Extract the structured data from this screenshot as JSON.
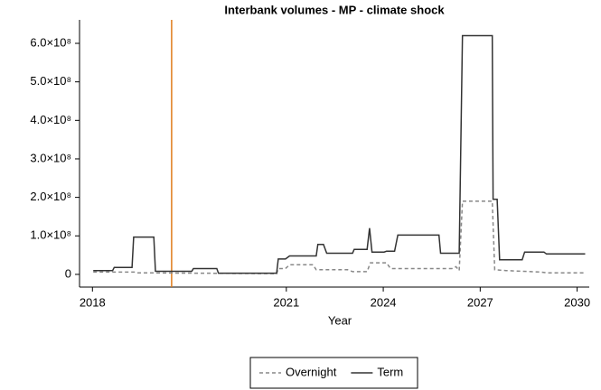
{
  "chart_data": {
    "type": "line",
    "title": "Interbank volumes - MP - climate shock",
    "xlabel": "Year",
    "xlim": [
      -1.6,
      61.5
    ],
    "xticks": [
      {
        "value": 0,
        "label": "2018"
      },
      {
        "value": 24,
        "label": "2021"
      },
      {
        "value": 36,
        "label": "2024"
      },
      {
        "value": 48,
        "label": "2027"
      },
      {
        "value": 60,
        "label": "2030"
      }
    ],
    "ylim": [
      -33000000,
      661000000
    ],
    "yticks": [
      0,
      {
        "value": 100000000,
        "label": "1.0×10⁸"
      },
      {
        "value": 200000000,
        "label": "2.0×10⁸"
      },
      {
        "value": 300000000,
        "label": "3.0×10⁸"
      },
      {
        "value": 400000000,
        "label": "4.0×10⁸"
      },
      {
        "value": 500000000,
        "label": "5.0×10⁸"
      },
      {
        "value": 600000000,
        "label": "6.0×10⁸"
      }
    ],
    "vline": 9.8,
    "vline_color": "#e07b1a",
    "legend": "bottom",
    "series": [
      {
        "name": "Overnight",
        "color": "#888888",
        "dash": true,
        "x": [
          0.1,
          5.3,
          5.5,
          22.8,
          23.0,
          23.9,
          24.4,
          27.3,
          27.7,
          31.6,
          32.2,
          34.0,
          34.4,
          36.4,
          36.9,
          44.5,
          45.0,
          45.4,
          45.8,
          49.5,
          49.8,
          51.2,
          55.6,
          56.2,
          61.0
        ],
        "values": [
          6000000,
          6000000,
          4000000,
          2000000,
          15000000,
          15000000,
          25000000,
          25000000,
          12000000,
          12000000,
          7000000,
          7000000,
          30000000,
          30000000,
          15000000,
          15000000,
          20000000,
          10000000,
          190000000,
          190000000,
          12000000,
          10000000,
          6000000,
          4000000,
          4000000
        ]
      },
      {
        "name": "Term",
        "color": "#333333",
        "dash": false,
        "x": [
          0.1,
          2.5,
          2.7,
          4.9,
          5.1,
          7.6,
          7.8,
          12.3,
          12.5,
          15.4,
          15.6,
          22.8,
          23.0,
          23.9,
          24.4,
          27.7,
          27.9,
          28.6,
          29.0,
          32.2,
          32.4,
          34.0,
          34.3,
          34.6,
          36.1,
          36.4,
          37.4,
          37.8,
          42.9,
          43.1,
          45.4,
          45.8,
          49.5,
          49.6,
          50.1,
          50.4,
          53.2,
          53.5,
          55.9,
          56.2,
          61.0
        ],
        "values": [
          10000000,
          10000000,
          18000000,
          18000000,
          97000000,
          97000000,
          8000000,
          8000000,
          15000000,
          15000000,
          3000000,
          3000000,
          40000000,
          40000000,
          48000000,
          48000000,
          78000000,
          78000000,
          55000000,
          55000000,
          65000000,
          65000000,
          120000000,
          58000000,
          58000000,
          60000000,
          60000000,
          102000000,
          102000000,
          55000000,
          55000000,
          620000000,
          620000000,
          195000000,
          195000000,
          38000000,
          38000000,
          58000000,
          58000000,
          53000000,
          53000000
        ]
      }
    ]
  }
}
